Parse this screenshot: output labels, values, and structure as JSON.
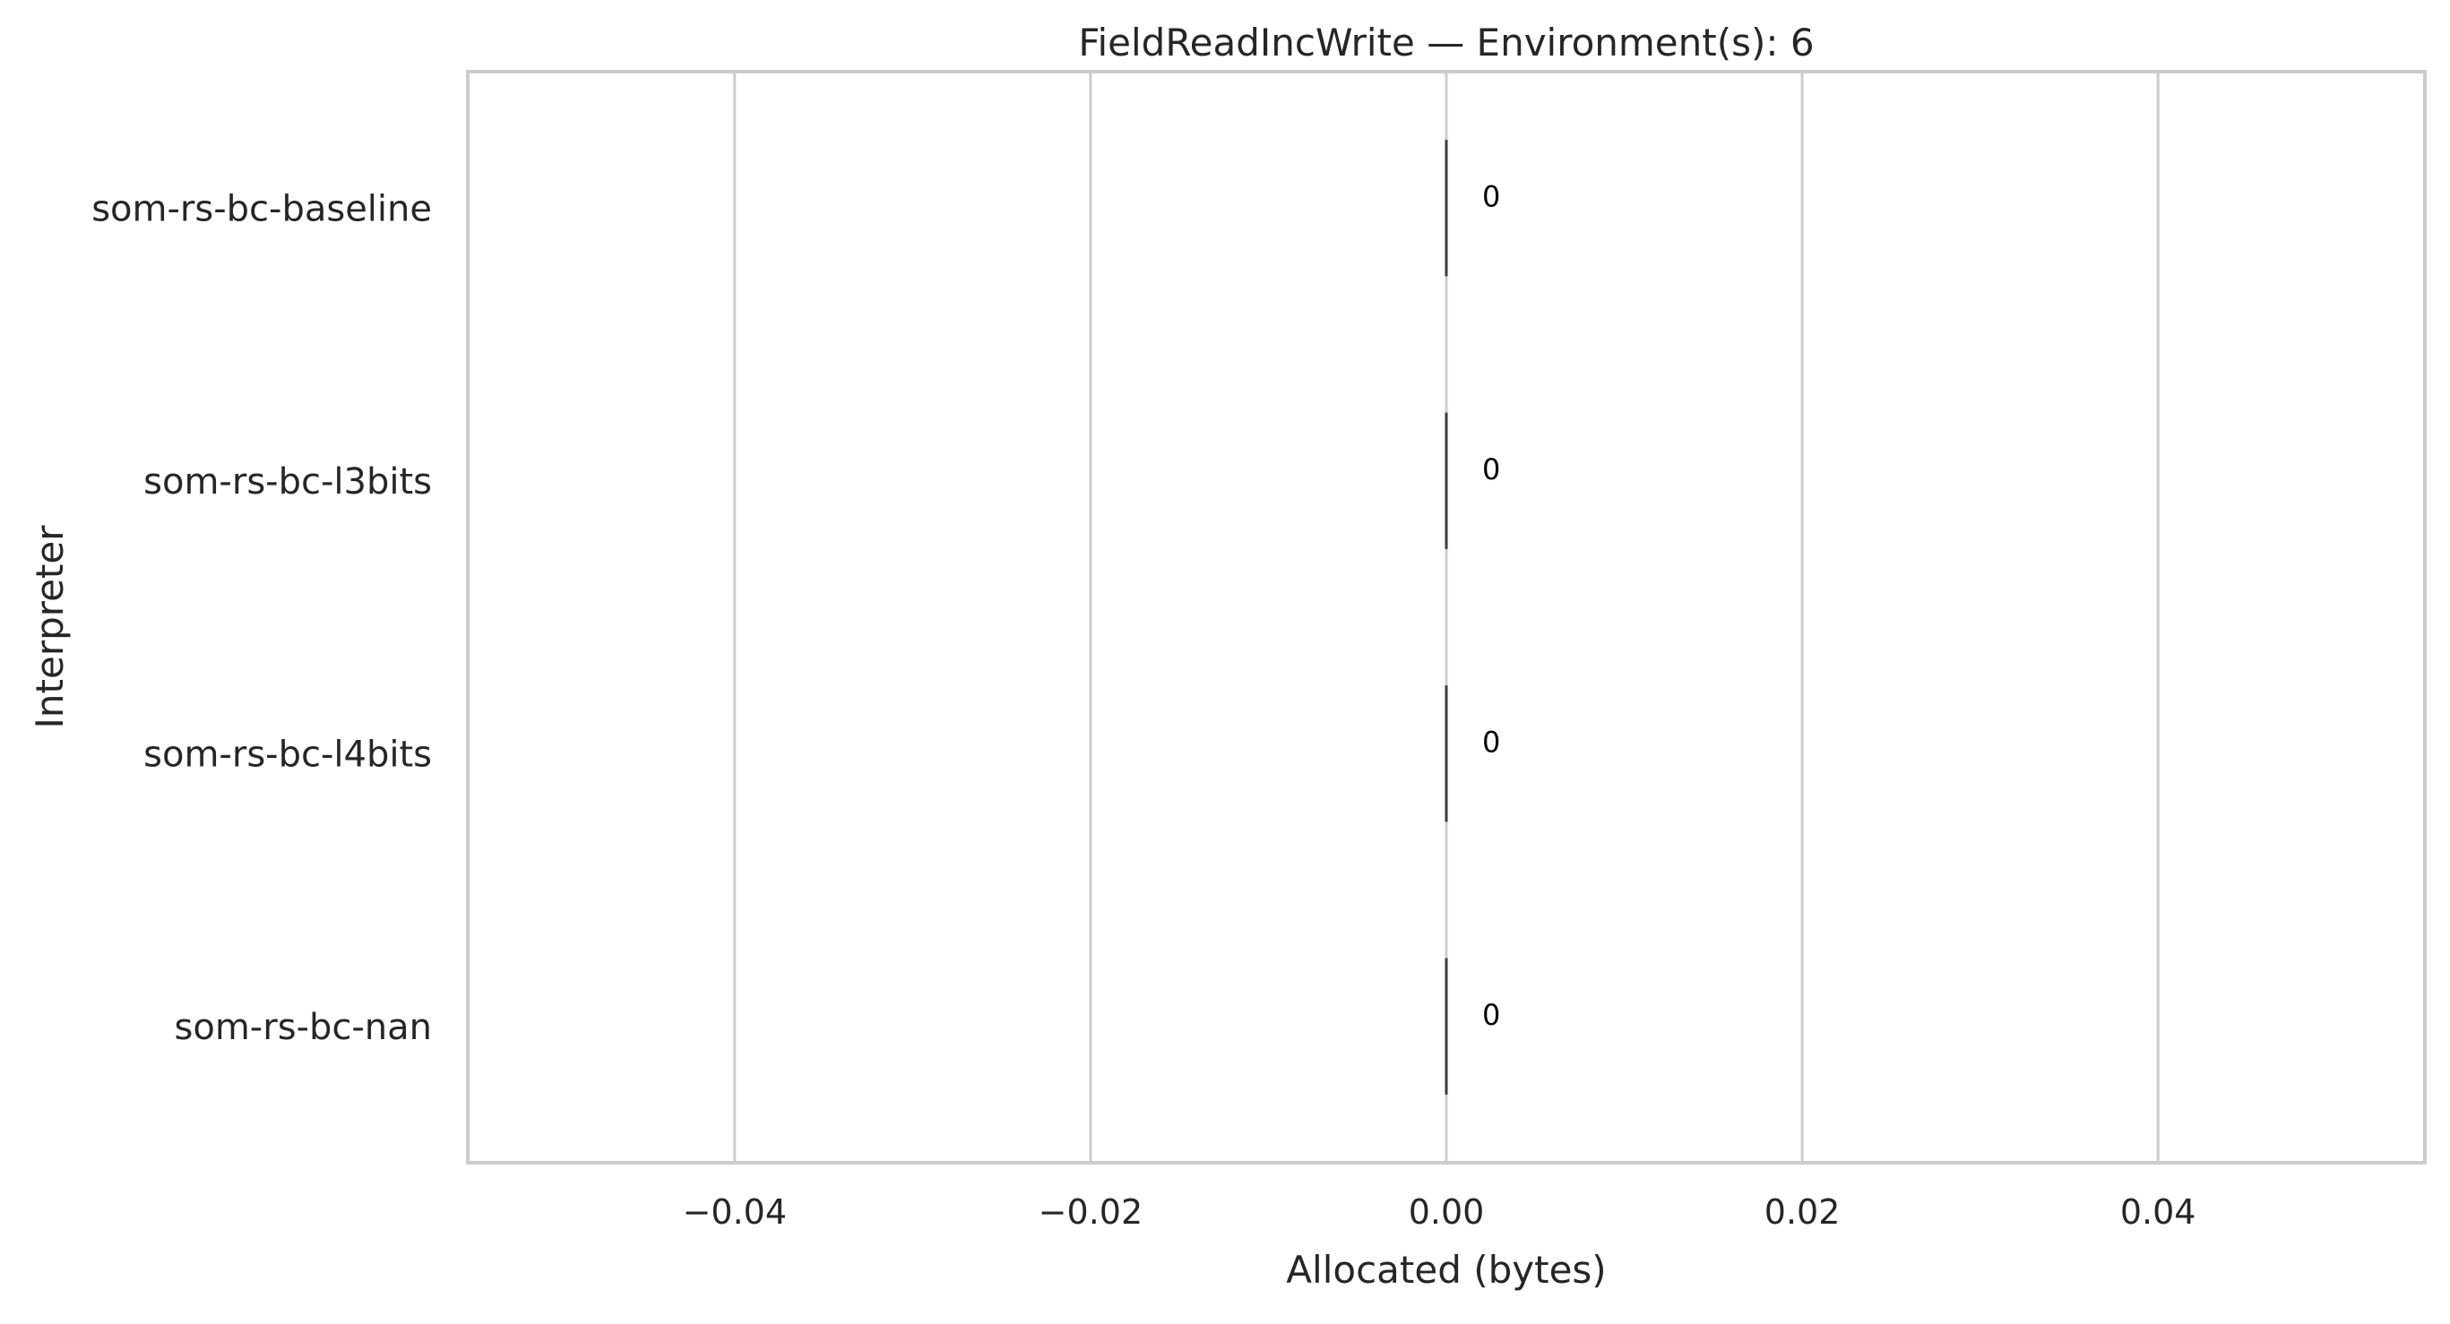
{
  "chart_data": {
    "type": "bar",
    "orientation": "horizontal",
    "title": "FieldReadIncWrite — Environment(s): 6",
    "xlabel": "Allocated (bytes)",
    "ylabel": "Interpreter",
    "categories": [
      "som-rs-bc-baseline",
      "som-rs-bc-l3bits",
      "som-rs-bc-l4bits",
      "som-rs-bc-nan"
    ],
    "values": [
      0,
      0,
      0,
      0
    ],
    "data_labels": [
      "0",
      "0",
      "0",
      "0"
    ],
    "xlim": [
      -0.055,
      0.055
    ],
    "xticks": [
      -0.04,
      -0.02,
      0.0,
      0.02,
      0.04
    ],
    "xtick_labels": [
      "−0.04",
      "−0.02",
      "0.00",
      "0.02",
      "0.04"
    ],
    "grid": true,
    "legend": false,
    "colors": {
      "axis": "#cccccc",
      "grid": "#cccccc",
      "bar_edge": "#3d3d3d",
      "text": "#262626",
      "data_label": "#000000"
    }
  }
}
